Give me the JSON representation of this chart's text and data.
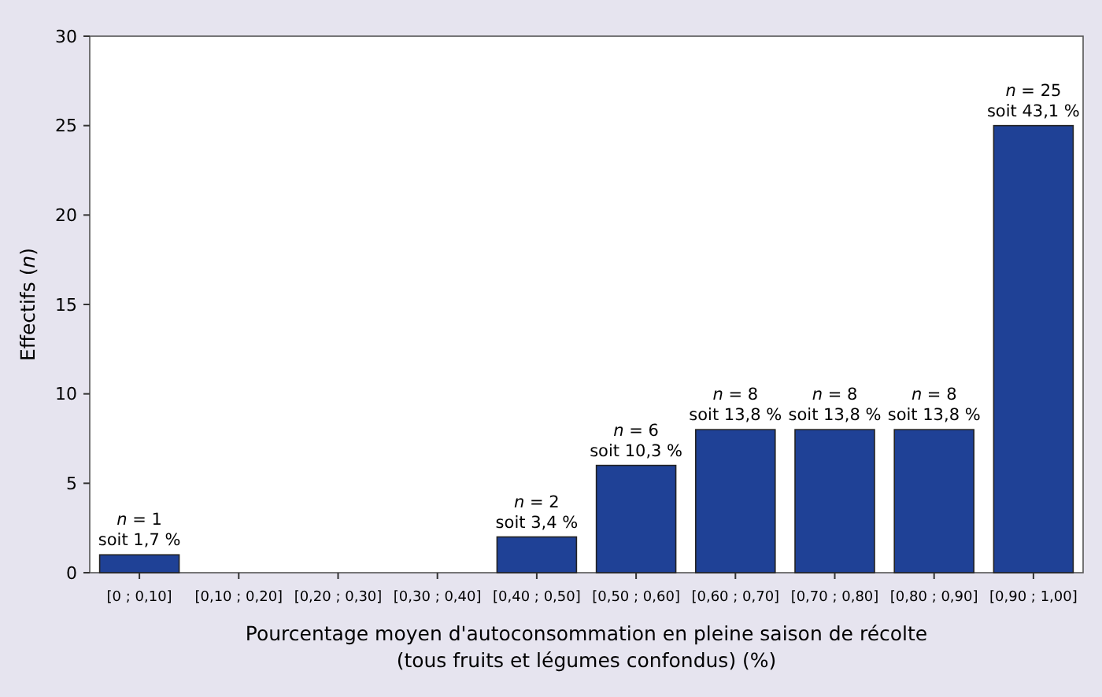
{
  "chart_data": {
    "type": "bar",
    "xlabel": "Pourcentage moyen d'autoconsommation en pleine saison de récolte\n(tous fruits et légumes confondus) (%)",
    "ylabel": "Effectifs (n)",
    "categories": [
      "[0 ; 0,10]",
      "[0,10 ; 0,20]",
      "[0,20 ; 0,30]",
      "[0,30 ; 0,40]",
      "[0,40 ; 0,50]",
      "[0,50 ; 0,60]",
      "[0,60 ; 0,70]",
      "[0,70 ; 0,80]",
      "[0,80 ; 0,90]",
      "[0,90 ; 1,00]"
    ],
    "values": [
      1,
      0,
      0,
      0,
      2,
      6,
      8,
      8,
      8,
      25
    ],
    "value_labels": [
      "n = 1\nsoit 1,7 %",
      null,
      null,
      null,
      "n = 2\nsoit 3,4 %",
      "n = 6\nsoit 10,3 %",
      "n = 8\nsoit 13,8 %",
      "n = 8\nsoit 13,8 %",
      "n = 8\nsoit 13,8 %",
      "n = 25\nsoit 43,1 %"
    ],
    "color": "#1f4196",
    "ylim": [
      0,
      30
    ],
    "yticks": [
      0,
      5,
      10,
      15,
      20,
      25,
      30
    ],
    "grid": false
  }
}
